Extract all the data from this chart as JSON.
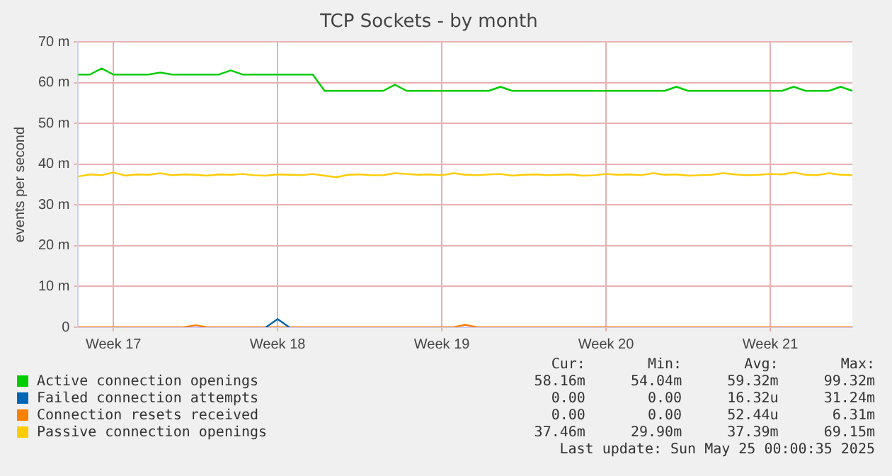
{
  "chart_data": {
    "type": "line",
    "title": "TCP Sockets - by month",
    "ylabel": "events per second",
    "categories": [
      null,
      null,
      null,
      "Week 17",
      null,
      null,
      null,
      null,
      null,
      null,
      null,
      null,
      null,
      null,
      null,
      null,
      null,
      "Week 18",
      null,
      null,
      null,
      null,
      null,
      null,
      null,
      null,
      null,
      null,
      null,
      null,
      null,
      "Week 19",
      null,
      null,
      null,
      null,
      null,
      null,
      null,
      null,
      null,
      null,
      null,
      null,
      null,
      "Week 20",
      null,
      null,
      null,
      null,
      null,
      null,
      null,
      null,
      null,
      null,
      null,
      null,
      null,
      "Week 21",
      null,
      null,
      null,
      null,
      null,
      null,
      null
    ],
    "ylim": [
      0,
      70
    ],
    "yticks": [
      {
        "value": 0,
        "label": "0"
      },
      {
        "value": 10,
        "label": "10 m"
      },
      {
        "value": 20,
        "label": "20 m"
      },
      {
        "value": 30,
        "label": "30 m"
      },
      {
        "value": 40,
        "label": "40 m"
      },
      {
        "value": 50,
        "label": "50 m"
      },
      {
        "value": 60,
        "label": "60 m"
      },
      {
        "value": 70,
        "label": "70 m"
      }
    ],
    "grid": true,
    "legend": "bottom",
    "series": [
      {
        "name": "Active connection openings",
        "color": "#00cc00",
        "values": [
          62,
          62,
          63.5,
          62,
          62,
          62,
          62,
          62.5,
          62,
          62,
          62,
          62,
          62,
          63,
          62,
          62,
          62,
          62,
          62,
          62,
          62,
          58,
          58,
          58,
          58,
          58,
          58,
          59.5,
          58,
          58,
          58,
          58,
          58,
          58,
          58,
          58,
          59,
          58,
          58,
          58,
          58,
          58,
          58,
          58,
          58,
          58,
          58,
          58,
          58,
          58,
          58,
          59,
          58,
          58,
          58,
          58,
          58,
          58,
          58,
          58,
          58,
          59,
          58,
          58,
          58,
          59,
          58
        ]
      },
      {
        "name": "Failed connection attempts",
        "color": "#0066b3",
        "values": [
          null,
          null,
          null,
          null,
          null,
          null,
          null,
          null,
          null,
          null,
          null,
          null,
          null,
          null,
          null,
          null,
          0,
          2,
          0,
          null,
          null,
          null,
          null,
          null,
          null,
          null,
          null,
          null,
          null,
          null,
          null,
          null,
          null,
          null,
          null,
          null,
          null,
          null,
          null,
          null,
          null,
          null,
          null,
          null,
          null,
          null,
          null,
          null,
          null,
          null,
          null,
          null,
          null,
          null,
          null,
          null,
          null,
          null,
          null,
          null,
          null,
          null,
          null,
          null,
          null,
          null,
          null
        ]
      },
      {
        "name": "Connection resets received",
        "color": "#ff8000",
        "values": [
          0,
          0,
          0,
          0,
          0,
          0,
          0,
          0,
          0,
          0,
          0.5,
          0,
          0,
          0,
          0,
          0,
          0,
          0,
          0,
          0,
          0,
          0,
          0,
          0,
          0,
          0,
          0,
          0,
          0,
          0,
          0,
          0,
          0,
          0.6,
          0,
          0,
          0,
          0,
          0,
          0,
          0,
          0,
          0,
          0,
          0,
          0,
          0,
          0,
          0,
          0,
          0,
          0,
          0,
          0,
          0,
          0,
          0,
          0,
          0,
          0,
          0,
          0,
          0,
          0,
          0,
          0,
          0
        ]
      },
      {
        "name": "Passive connection openings",
        "color": "#ffcc00",
        "values": [
          37,
          37.5,
          37.3,
          38,
          37.2,
          37.5,
          37.4,
          37.8,
          37.3,
          37.5,
          37.4,
          37.2,
          37.5,
          37.4,
          37.6,
          37.3,
          37.2,
          37.5,
          37.4,
          37.3,
          37.6,
          37.2,
          36.8,
          37.4,
          37.5,
          37.3,
          37.3,
          37.8,
          37.6,
          37.4,
          37.5,
          37.3,
          37.8,
          37.4,
          37.3,
          37.5,
          37.6,
          37.2,
          37.4,
          37.5,
          37.3,
          37.4,
          37.5,
          37.2,
          37.3,
          37.6,
          37.4,
          37.5,
          37.3,
          37.8,
          37.4,
          37.5,
          37.2,
          37.3,
          37.4,
          37.8,
          37.5,
          37.3,
          37.4,
          37.6,
          37.5,
          38,
          37.4,
          37.3,
          37.8,
          37.4,
          37.3
        ]
      }
    ],
    "annotations": [
      "Cur:",
      "Min:",
      "Avg:",
      "Max:",
      "58.16m",
      "54.04m",
      "59.32m",
      "99.32m",
      "0.00",
      "0.00",
      "16.32u",
      "31.24m",
      "0.00",
      "0.00",
      "52.44u",
      "6.31m",
      "37.46m",
      "29.90m",
      "37.39m",
      "69.15m",
      "Last update: Sun May 25 00:00:35 2025"
    ]
  }
}
